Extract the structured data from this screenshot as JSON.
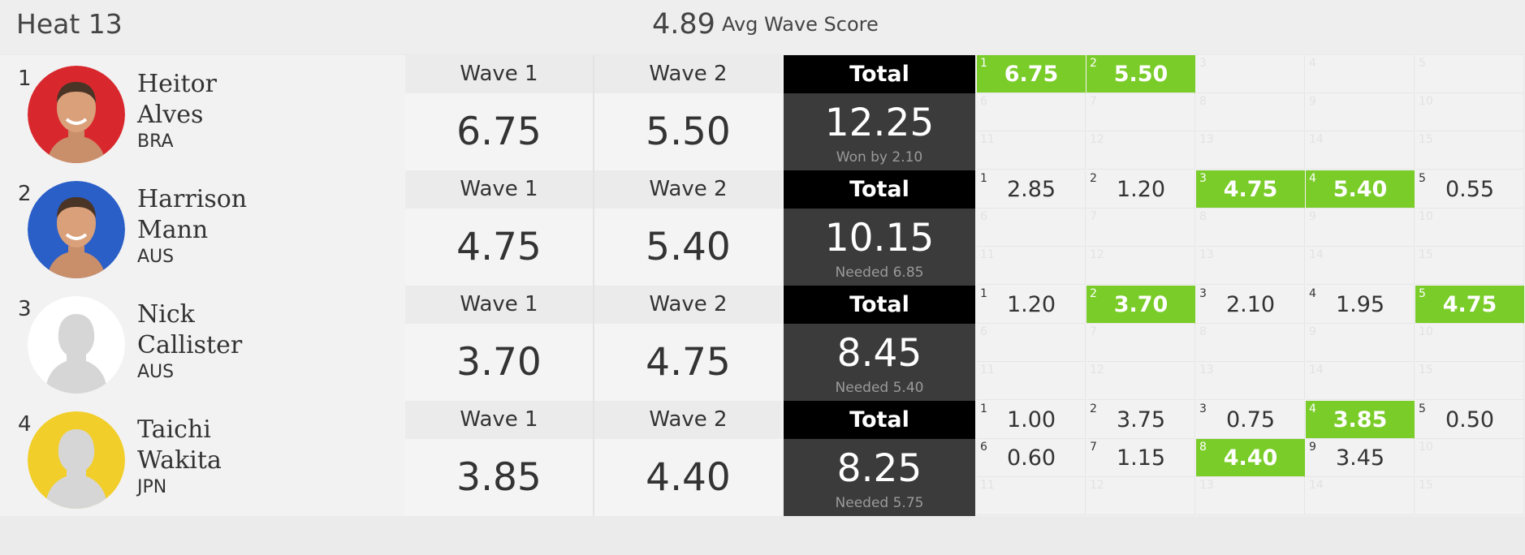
{
  "heat": {
    "title": "Heat 13",
    "avg_score": "4.89",
    "avg_label": "Avg Wave Score"
  },
  "colors": {
    "best_wave": "#7acc29",
    "total_header": "#000000",
    "total_body": "#3b3b3b"
  },
  "athletes": [
    {
      "rank": "1",
      "first": "Heitor",
      "last": "Alves",
      "country": "BRA",
      "avatar_bg": "#d8282e",
      "avatar_icon": "athlete-photo",
      "wave1_label": "Wave 1",
      "wave1": "6.75",
      "wave2_label": "Wave 2",
      "wave2": "5.50",
      "total_label": "Total",
      "total": "12.25",
      "total_sub": "Won by 2.10",
      "waves": [
        {
          "n": "1",
          "v": "6.75",
          "best": true
        },
        {
          "n": "2",
          "v": "5.50",
          "best": true
        },
        {
          "n": "3",
          "v": ""
        },
        {
          "n": "4",
          "v": ""
        },
        {
          "n": "5",
          "v": ""
        },
        {
          "n": "6",
          "v": ""
        },
        {
          "n": "7",
          "v": ""
        },
        {
          "n": "8",
          "v": ""
        },
        {
          "n": "9",
          "v": ""
        },
        {
          "n": "10",
          "v": ""
        },
        {
          "n": "11",
          "v": ""
        },
        {
          "n": "12",
          "v": ""
        },
        {
          "n": "13",
          "v": ""
        },
        {
          "n": "14",
          "v": ""
        },
        {
          "n": "15",
          "v": ""
        }
      ]
    },
    {
      "rank": "2",
      "first": "Harrison",
      "last": "Mann",
      "country": "AUS",
      "avatar_bg": "#2a5fc8",
      "avatar_icon": "athlete-photo",
      "wave1_label": "Wave 1",
      "wave1": "4.75",
      "wave2_label": "Wave 2",
      "wave2": "5.40",
      "total_label": "Total",
      "total": "10.15",
      "total_sub": "Needed 6.85",
      "waves": [
        {
          "n": "1",
          "v": "2.85"
        },
        {
          "n": "2",
          "v": "1.20"
        },
        {
          "n": "3",
          "v": "4.75",
          "best": true
        },
        {
          "n": "4",
          "v": "5.40",
          "best": true
        },
        {
          "n": "5",
          "v": "0.55"
        },
        {
          "n": "6",
          "v": ""
        },
        {
          "n": "7",
          "v": ""
        },
        {
          "n": "8",
          "v": ""
        },
        {
          "n": "9",
          "v": ""
        },
        {
          "n": "10",
          "v": ""
        },
        {
          "n": "11",
          "v": ""
        },
        {
          "n": "12",
          "v": ""
        },
        {
          "n": "13",
          "v": ""
        },
        {
          "n": "14",
          "v": ""
        },
        {
          "n": "15",
          "v": ""
        }
      ]
    },
    {
      "rank": "3",
      "first": "Nick",
      "last": "Callister",
      "country": "AUS",
      "avatar_bg": "#ffffff",
      "avatar_icon": "silhouette",
      "wave1_label": "Wave 1",
      "wave1": "3.70",
      "wave2_label": "Wave 2",
      "wave2": "4.75",
      "total_label": "Total",
      "total": "8.45",
      "total_sub": "Needed 5.40",
      "waves": [
        {
          "n": "1",
          "v": "1.20"
        },
        {
          "n": "2",
          "v": "3.70",
          "best": true
        },
        {
          "n": "3",
          "v": "2.10"
        },
        {
          "n": "4",
          "v": "1.95"
        },
        {
          "n": "5",
          "v": "4.75",
          "best": true
        },
        {
          "n": "6",
          "v": ""
        },
        {
          "n": "7",
          "v": ""
        },
        {
          "n": "8",
          "v": ""
        },
        {
          "n": "9",
          "v": ""
        },
        {
          "n": "10",
          "v": ""
        },
        {
          "n": "11",
          "v": ""
        },
        {
          "n": "12",
          "v": ""
        },
        {
          "n": "13",
          "v": ""
        },
        {
          "n": "14",
          "v": ""
        },
        {
          "n": "15",
          "v": ""
        }
      ]
    },
    {
      "rank": "4",
      "first": "Taichi",
      "last": "Wakita",
      "country": "JPN",
      "avatar_bg": "#f2ce2a",
      "avatar_icon": "silhouette",
      "wave1_label": "Wave 1",
      "wave1": "3.85",
      "wave2_label": "Wave 2",
      "wave2": "4.40",
      "total_label": "Total",
      "total": "8.25",
      "total_sub": "Needed 5.75",
      "waves": [
        {
          "n": "1",
          "v": "1.00"
        },
        {
          "n": "2",
          "v": "3.75"
        },
        {
          "n": "3",
          "v": "0.75"
        },
        {
          "n": "4",
          "v": "3.85",
          "best": true
        },
        {
          "n": "5",
          "v": "0.50"
        },
        {
          "n": "6",
          "v": "0.60"
        },
        {
          "n": "7",
          "v": "1.15"
        },
        {
          "n": "8",
          "v": "4.40",
          "best": true
        },
        {
          "n": "9",
          "v": "3.45"
        },
        {
          "n": "10",
          "v": ""
        },
        {
          "n": "11",
          "v": ""
        },
        {
          "n": "12",
          "v": ""
        },
        {
          "n": "13",
          "v": ""
        },
        {
          "n": "14",
          "v": ""
        },
        {
          "n": "15",
          "v": ""
        }
      ]
    }
  ]
}
